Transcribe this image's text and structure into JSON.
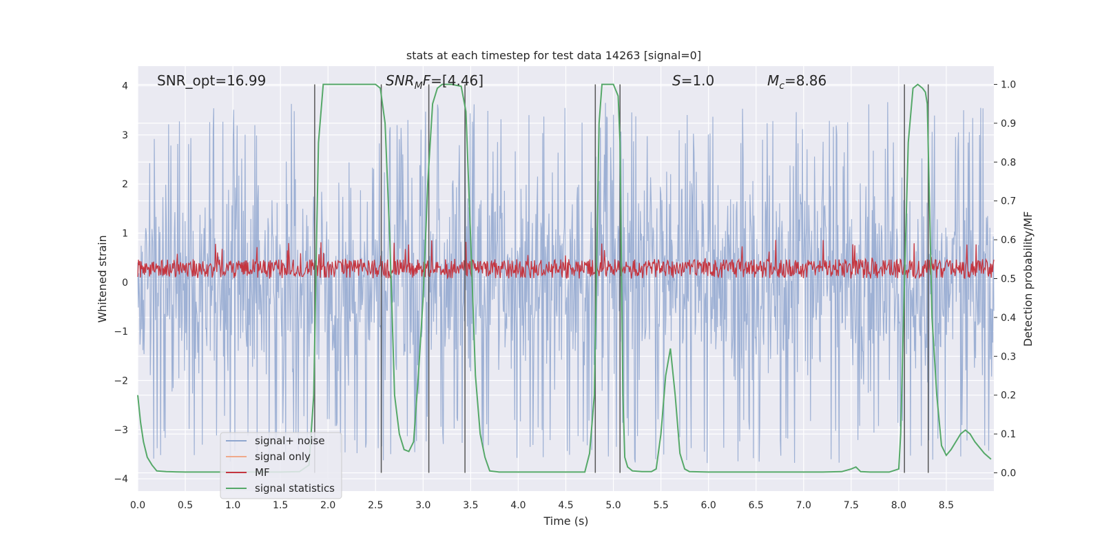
{
  "chart_data": {
    "type": "line",
    "title": "stats at each timestep for test data 14263 [signal=0]",
    "xlabel": "Time (s)",
    "ylabel": "Whitened strain",
    "y2label": "Detection probability/MF",
    "xlim": [
      0.0,
      9.0
    ],
    "ylim": [
      -4.25,
      4.4
    ],
    "y2lim": [
      -0.047,
      1.047
    ],
    "xticks": [
      "0.0",
      "0.5",
      "1.0",
      "1.5",
      "2.0",
      "2.5",
      "3.0",
      "3.5",
      "4.0",
      "4.5",
      "5.0",
      "5.5",
      "6.0",
      "6.5",
      "7.0",
      "7.5",
      "8.0",
      "8.5"
    ],
    "yticks": [
      "4",
      "3",
      "2",
      "1",
      "0",
      "−1",
      "−2",
      "−3",
      "−4"
    ],
    "y2ticks": [
      "1.0",
      "0.9",
      "0.8",
      "0.7",
      "0.6",
      "0.5",
      "0.4",
      "0.3",
      "0.2",
      "0.1",
      "0.0"
    ],
    "grid": true,
    "annotations": {
      "snr_opt": "SNR_opt=16.99",
      "snr_mf_prefix": "SNR",
      "snr_mf_sub": "M",
      "snr_mf_suffix": "F",
      "snr_mf_value": "=[4.46]",
      "s_label": "S",
      "s_value": "=1.0",
      "mc_label": "M",
      "mc_sub": "c",
      "mc_value": "=8.86"
    },
    "legend": {
      "position": "lower-left",
      "entries": [
        {
          "label": "signal+ noise",
          "color": "#8fa6cf"
        },
        {
          "label": "signal only",
          "color": "#f0a98a"
        },
        {
          "label": "MF",
          "color": "#c4353f"
        },
        {
          "label": "signal statistics",
          "color": "#55a868"
        }
      ]
    },
    "series": [
      {
        "name": "signal+ noise",
        "description": "dense whitened strain noise, approx uniform band",
        "envelope_low": -2.7,
        "envelope_high": 2.5,
        "core_low": -1.5,
        "core_high": 1.65
      },
      {
        "name": "MF",
        "description": "matched filter output on right axis",
        "typical_low": 0.51,
        "typical_high": 0.55,
        "peak": 0.6
      },
      {
        "name": "signal statistics",
        "axis": "right",
        "x": [
          0.0,
          0.03,
          0.06,
          0.1,
          0.15,
          0.2,
          0.3,
          0.5,
          1.0,
          1.5,
          1.7,
          1.8,
          1.85,
          1.88,
          1.9,
          1.95,
          2.0,
          2.2,
          2.5,
          2.55,
          2.6,
          2.65,
          2.7,
          2.75,
          2.8,
          2.85,
          2.9,
          2.95,
          3.0,
          3.05,
          3.1,
          3.15,
          3.2,
          3.3,
          3.4,
          3.45,
          3.5,
          3.55,
          3.6,
          3.65,
          3.7,
          3.8,
          4.0,
          4.5,
          4.7,
          4.75,
          4.8,
          4.85,
          4.88,
          4.9,
          4.95,
          5.0,
          5.05,
          5.07,
          5.1,
          5.12,
          5.15,
          5.2,
          5.3,
          5.4,
          5.45,
          5.5,
          5.55,
          5.6,
          5.65,
          5.7,
          5.75,
          5.8,
          6.0,
          6.5,
          7.0,
          7.2,
          7.4,
          7.5,
          7.55,
          7.6,
          7.7,
          7.9,
          8.0,
          8.02,
          8.05,
          8.1,
          8.15,
          8.2,
          8.25,
          8.28,
          8.3,
          8.35,
          8.4,
          8.45,
          8.5,
          8.55,
          8.6,
          8.65,
          8.7,
          8.75,
          8.8,
          8.9,
          8.97
        ],
        "values": [
          0.2,
          0.13,
          0.08,
          0.04,
          0.02,
          0.005,
          0.003,
          0.002,
          0.002,
          0.002,
          0.003,
          0.02,
          0.2,
          0.6,
          0.85,
          1.0,
          1.0,
          1.0,
          1.0,
          0.99,
          0.9,
          0.6,
          0.2,
          0.1,
          0.06,
          0.055,
          0.08,
          0.25,
          0.45,
          0.75,
          0.95,
          0.99,
          1.0,
          1.0,
          0.995,
          0.93,
          0.6,
          0.25,
          0.1,
          0.04,
          0.005,
          0.002,
          0.002,
          0.002,
          0.002,
          0.05,
          0.2,
          0.9,
          1.0,
          1.0,
          1.0,
          1.0,
          0.97,
          0.85,
          0.2,
          0.04,
          0.015,
          0.005,
          0.003,
          0.003,
          0.01,
          0.1,
          0.25,
          0.32,
          0.2,
          0.05,
          0.01,
          0.003,
          0.002,
          0.002,
          0.002,
          0.002,
          0.003,
          0.01,
          0.015,
          0.003,
          0.002,
          0.002,
          0.01,
          0.1,
          0.4,
          0.85,
          0.99,
          1.0,
          0.99,
          0.98,
          0.95,
          0.4,
          0.2,
          0.07,
          0.045,
          0.06,
          0.08,
          0.1,
          0.11,
          0.1,
          0.08,
          0.05,
          0.035
        ]
      }
    ],
    "vertical_markers": [
      1.86,
      2.56,
      3.06,
      3.44,
      4.81,
      5.07,
      8.06,
      8.31
    ]
  }
}
